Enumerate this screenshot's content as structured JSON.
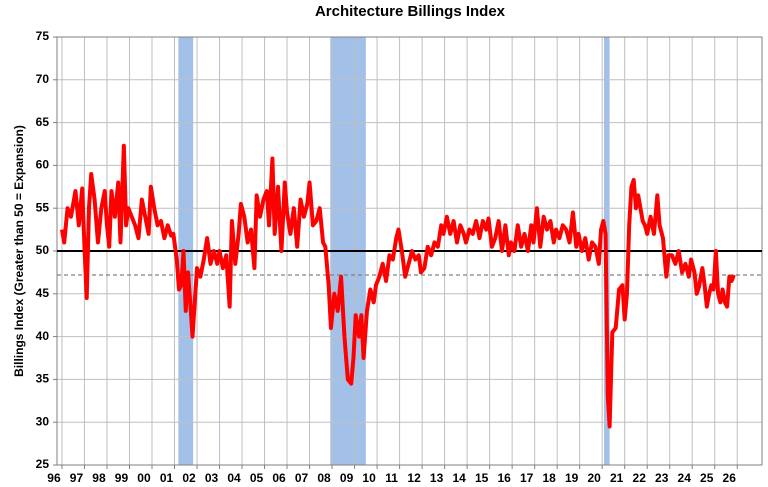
{
  "chart_data": {
    "type": "line",
    "title": "Architecture Billings Index",
    "y_label": "Billings Index (Greater than 50 = Expansion)",
    "color": "#ff0000",
    "x": [
      1996.0,
      1996.1,
      1996.25,
      1996.4,
      1996.6,
      1996.75,
      1996.9,
      1997.0,
      1997.1,
      1997.2,
      1997.3,
      1997.45,
      1997.6,
      1997.75,
      1997.9,
      1998.0,
      1998.1,
      1998.2,
      1998.35,
      1998.5,
      1998.6,
      1998.75,
      1998.85,
      1998.95,
      1999.1,
      1999.25,
      1999.4,
      1999.55,
      1999.7,
      1999.85,
      1999.95,
      2000.1,
      2000.25,
      2000.4,
      2000.55,
      2000.7,
      2000.85,
      2000.95,
      2001.1,
      2001.2,
      2001.3,
      2001.4,
      2001.5,
      2001.6,
      2001.7,
      2001.8,
      2001.9,
      2002.0,
      2002.15,
      2002.3,
      2002.45,
      2002.6,
      2002.75,
      2002.9,
      2003.0,
      2003.15,
      2003.3,
      2003.45,
      2003.55,
      2003.7,
      2003.85,
      2003.95,
      2004.1,
      2004.25,
      2004.4,
      2004.55,
      2004.65,
      2004.8,
      2004.95,
      2005.1,
      2005.2,
      2005.35,
      2005.45,
      2005.6,
      2005.75,
      2005.9,
      2006.0,
      2006.15,
      2006.3,
      2006.45,
      2006.6,
      2006.75,
      2006.9,
      2007.0,
      2007.15,
      2007.3,
      2007.45,
      2007.6,
      2007.7,
      2007.85,
      2007.95,
      2008.1,
      2008.25,
      2008.4,
      2008.55,
      2008.7,
      2008.85,
      2008.95,
      2009.05,
      2009.2,
      2009.3,
      2009.4,
      2009.55,
      2009.7,
      2009.85,
      2009.95,
      2010.1,
      2010.25,
      2010.4,
      2010.55,
      2010.7,
      2010.85,
      2010.95,
      2011.1,
      2011.25,
      2011.4,
      2011.55,
      2011.7,
      2011.85,
      2011.95,
      2012.1,
      2012.25,
      2012.4,
      2012.55,
      2012.7,
      2012.85,
      2012.95,
      2013.1,
      2013.25,
      2013.4,
      2013.55,
      2013.7,
      2013.85,
      2013.95,
      2014.1,
      2014.25,
      2014.4,
      2014.55,
      2014.7,
      2014.85,
      2014.95,
      2015.1,
      2015.25,
      2015.4,
      2015.55,
      2015.7,
      2015.85,
      2015.95,
      2016.1,
      2016.25,
      2016.4,
      2016.55,
      2016.7,
      2016.85,
      2016.95,
      2017.1,
      2017.25,
      2017.4,
      2017.55,
      2017.7,
      2017.85,
      2017.95,
      2018.1,
      2018.25,
      2018.4,
      2018.55,
      2018.7,
      2018.85,
      2018.95,
      2019.1,
      2019.25,
      2019.4,
      2019.55,
      2019.7,
      2019.85,
      2019.95,
      2020.05,
      2020.15,
      2020.25,
      2020.33,
      2020.45,
      2020.6,
      2020.75,
      2020.9,
      2021.0,
      2021.1,
      2021.2,
      2021.3,
      2021.4,
      2021.5,
      2021.6,
      2021.7,
      2021.8,
      2021.9,
      2022.0,
      2022.15,
      2022.3,
      2022.45,
      2022.55,
      2022.7,
      2022.85,
      2022.95,
      2023.1,
      2023.25,
      2023.4,
      2023.55,
      2023.7,
      2023.85,
      2023.95,
      2024.1,
      2024.2,
      2024.3,
      2024.45,
      2024.55,
      2024.65,
      2024.75,
      2024.85,
      2024.95,
      2025.05,
      2025.15,
      2025.25,
      2025.35,
      2025.45,
      2025.55,
      2025.65,
      2025.75,
      2025.85
    ],
    "values": [
      52.5,
      51,
      55,
      54,
      57,
      53,
      57.3,
      50.5,
      44.5,
      55,
      59,
      56,
      51,
      55,
      57,
      53,
      50.5,
      57,
      54,
      58,
      51,
      62.3,
      53,
      55,
      54,
      53,
      51.5,
      56,
      54,
      52,
      57.5,
      55,
      53,
      53.5,
      51.5,
      53,
      51.8,
      52,
      49,
      45.5,
      46,
      50,
      43,
      47.5,
      44,
      40,
      44,
      48,
      47,
      49,
      51.5,
      48.5,
      50,
      48.5,
      50,
      48,
      49.5,
      43.5,
      53.5,
      48.5,
      52,
      55.5,
      54,
      51,
      52.5,
      48,
      56.5,
      54,
      56,
      57,
      53,
      60.8,
      52,
      57.5,
      50,
      58,
      54.5,
      52,
      55,
      50.5,
      56,
      54,
      55.5,
      58,
      53,
      53.5,
      55,
      51,
      50.5,
      46,
      41,
      45,
      43,
      47,
      40,
      35,
      34.5,
      37.5,
      42.5,
      40,
      42.5,
      37.5,
      43,
      45.5,
      44,
      46,
      47,
      48.5,
      46.5,
      49.5,
      49,
      51.5,
      52.5,
      50,
      47,
      48.5,
      50,
      49,
      49.5,
      47.5,
      48,
      50.5,
      49.5,
      51,
      50.5,
      53,
      52,
      54,
      52,
      53.5,
      51,
      53,
      52,
      51,
      52.5,
      52,
      53.5,
      51.5,
      53.5,
      52.5,
      53.8,
      50.5,
      51.5,
      53.5,
      50,
      53,
      49.5,
      51,
      50,
      53,
      50.5,
      52,
      50,
      53,
      51,
      55,
      50.5,
      54,
      52.5,
      53.5,
      51,
      52.5,
      51.5,
      53,
      52.5,
      51,
      54.5,
      50.5,
      52,
      50,
      51.5,
      49,
      51,
      50.5,
      48.5,
      52.5,
      53.5,
      52,
      33,
      29.5,
      40.5,
      41,
      45.5,
      46,
      42,
      45,
      53,
      57.5,
      58.3,
      55,
      56.5,
      55,
      53.5,
      53,
      52,
      54,
      52,
      56.5,
      53,
      51.5,
      47,
      49.5,
      49.5,
      48.5,
      50,
      47.5,
      48.5,
      47,
      49,
      47.5,
      45,
      45.8,
      48,
      46,
      43.5,
      45,
      46,
      45.5,
      50,
      45,
      44,
      45.5,
      44,
      43.5,
      47,
      46.5,
      47.2
    ],
    "xlim": [
      1995.78,
      2027.1
    ],
    "ylim": [
      25,
      75
    ],
    "yticks": [
      25,
      30,
      35,
      40,
      45,
      50,
      55,
      60,
      65,
      70,
      75
    ],
    "xticks": [
      {
        "value": 1996,
        "label": "96"
      },
      {
        "value": 1997,
        "label": "97"
      },
      {
        "value": 1998,
        "label": "98"
      },
      {
        "value": 1999,
        "label": "99"
      },
      {
        "value": 2000,
        "label": "00"
      },
      {
        "value": 2001,
        "label": "01"
      },
      {
        "value": 2002,
        "label": "02"
      },
      {
        "value": 2003,
        "label": "03"
      },
      {
        "value": 2004,
        "label": "04"
      },
      {
        "value": 2005,
        "label": "05"
      },
      {
        "value": 2006,
        "label": "06"
      },
      {
        "value": 2007,
        "label": "07"
      },
      {
        "value": 2008,
        "label": "08"
      },
      {
        "value": 2009,
        "label": "09"
      },
      {
        "value": 2010,
        "label": "10"
      },
      {
        "value": 2011,
        "label": "11"
      },
      {
        "value": 2012,
        "label": "12"
      },
      {
        "value": 2013,
        "label": "13"
      },
      {
        "value": 2014,
        "label": "14"
      },
      {
        "value": 2015,
        "label": "15"
      },
      {
        "value": 2016,
        "label": "16"
      },
      {
        "value": 2017,
        "label": "17"
      },
      {
        "value": 2018,
        "label": "18"
      },
      {
        "value": 2019,
        "label": "19"
      },
      {
        "value": 2020,
        "label": "20"
      },
      {
        "value": 2021,
        "label": "21"
      },
      {
        "value": 2022,
        "label": "22"
      },
      {
        "value": 2023,
        "label": "23"
      },
      {
        "value": 2024,
        "label": "24"
      },
      {
        "value": 2025,
        "label": "25"
      },
      {
        "value": 2026,
        "label": "26"
      }
    ],
    "grid": true,
    "shaded_regions": [
      [
        2001.17,
        2001.83
      ],
      [
        2007.92,
        2009.5
      ],
      [
        2020.08,
        2020.33
      ]
    ],
    "shade_color": "#a3c0e8",
    "reference_lines": [
      {
        "value": 50,
        "style": "solid"
      },
      {
        "value": 47.2,
        "style": "dashed"
      }
    ]
  }
}
